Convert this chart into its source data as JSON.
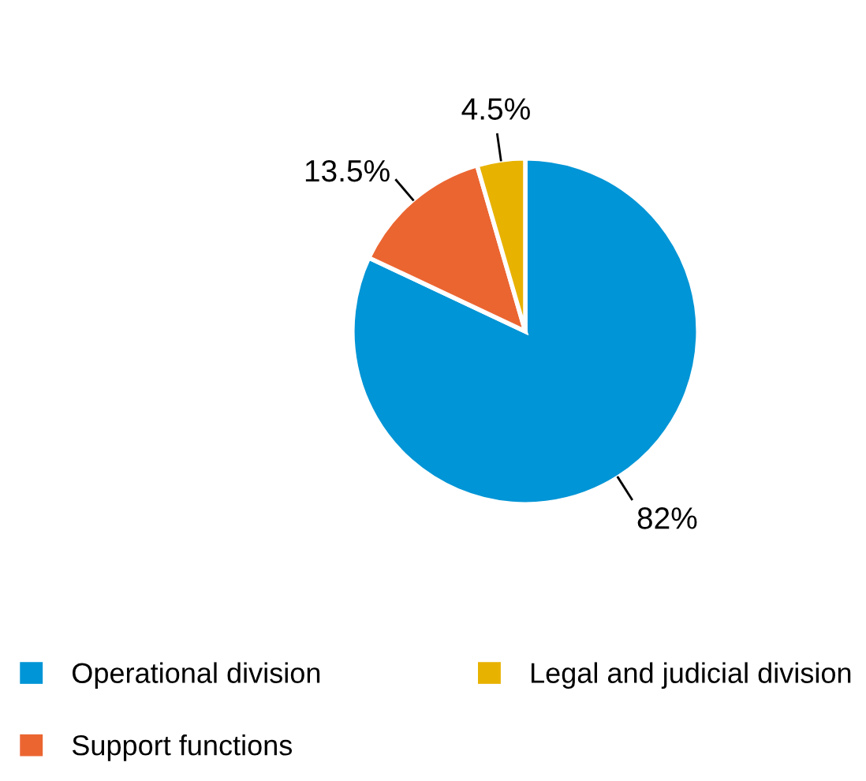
{
  "chart_data": {
    "type": "pie",
    "categories": [
      "Operational division",
      "Support functions",
      "Legal and judicial division"
    ],
    "values": [
      82,
      13.5,
      4.5
    ],
    "colors": [
      "#0095d6",
      "#eb6531",
      "#e8b200"
    ],
    "value_labels": [
      "82%",
      "13.5%",
      "4.5%"
    ],
    "legend": "bottom"
  }
}
